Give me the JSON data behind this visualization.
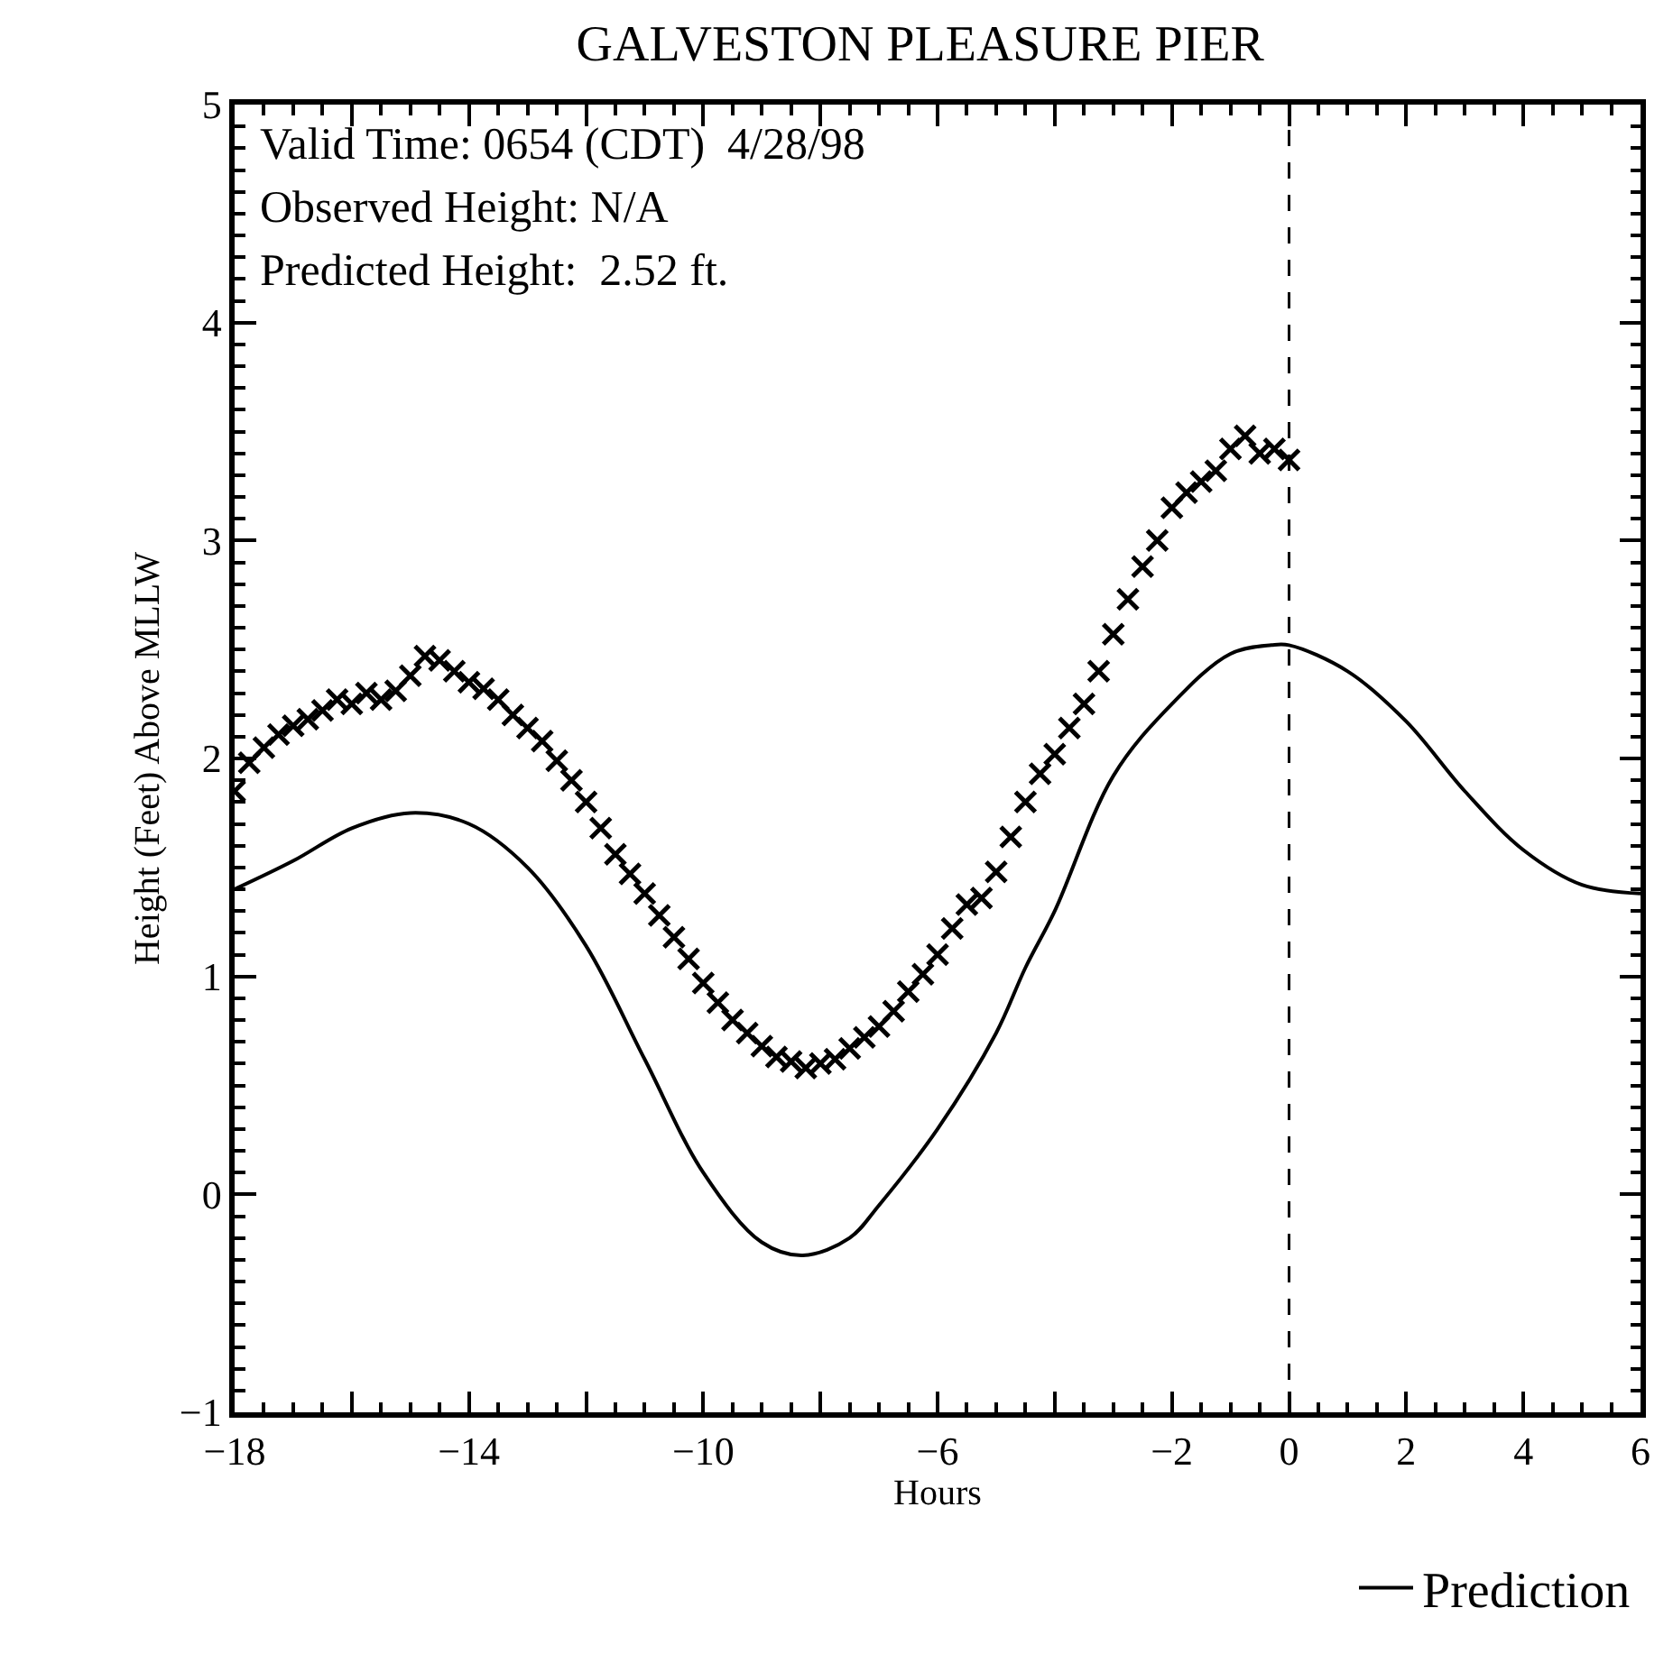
{
  "chart_data": {
    "type": "line",
    "title": "GALVESTON PLEASURE PIER",
    "xlabel": "Hours",
    "ylabel": "Height (Feet) Above MLLW",
    "annotations": [
      "Valid Time: 0654 (CDT)  4/28/98",
      "Observed Height: N/A",
      "Predicted Height:  2.52 ft."
    ],
    "xlim": [
      -18,
      6
    ],
    "ylim": [
      -1,
      5
    ],
    "xticks": [
      -18,
      {
        "value": -16,
        "label": null
      },
      -14,
      {
        "value": -12,
        "label": null
      },
      -10,
      {
        "value": -8,
        "label": null
      },
      -6,
      {
        "value": -4,
        "label": null
      },
      -2,
      0,
      2,
      4,
      6
    ],
    "yticks": [
      -1,
      0,
      1,
      2,
      3,
      4,
      5
    ],
    "grid": false,
    "legend": "bottom right",
    "ref_lines": [
      {
        "axis": "x",
        "value": 0,
        "line_style": "dashed",
        "color": "#000000"
      }
    ],
    "series": [
      {
        "name": "Prediction",
        "color": "#000000",
        "line_style": "solid",
        "marker": "none",
        "x": [
          -18,
          -17,
          -16,
          -15,
          -14,
          -13,
          -12,
          -11,
          -10,
          -9,
          -8.3,
          -7.5,
          -7,
          -6,
          -5,
          -4.5,
          -4,
          -3,
          -2,
          -1,
          -0.3,
          0,
          1,
          2,
          3,
          4,
          5,
          6
        ],
        "values": [
          1.4,
          1.53,
          1.68,
          1.75,
          1.7,
          1.5,
          1.14,
          0.62,
          0.1,
          -0.22,
          -0.28,
          -0.2,
          -0.05,
          0.3,
          0.74,
          1.04,
          1.3,
          1.92,
          2.25,
          2.48,
          2.52,
          2.52,
          2.4,
          2.17,
          1.85,
          1.58,
          1.42,
          1.38
        ]
      },
      {
        "type": "scatter",
        "color": "#000000",
        "marker": "cross",
        "x": [
          -18,
          -17.75,
          -17.5,
          -17.25,
          -17,
          -16.75,
          -16.5,
          -16.25,
          -16,
          -15.75,
          -15.5,
          -15.25,
          -15,
          -14.75,
          -14.5,
          -14.25,
          -14,
          -13.75,
          -13.5,
          -13.25,
          -13,
          -12.75,
          -12.5,
          -12.25,
          -12,
          -11.75,
          -11.5,
          -11.25,
          -11,
          -10.75,
          -10.5,
          -10.25,
          -10,
          -9.75,
          -9.5,
          -9.25,
          -9,
          -8.75,
          -8.5,
          -8.25,
          -8,
          -7.75,
          -7.5,
          -7.25,
          -7,
          -6.75,
          -6.5,
          -6.25,
          -6,
          -5.75,
          -5.5,
          -5.25,
          -5,
          -4.75,
          -4.5,
          -4.25,
          -4,
          -3.75,
          -3.5,
          -3.25,
          -3,
          -2.75,
          -2.5,
          -2.25,
          -2,
          -1.75,
          -1.5,
          -1.25,
          -1,
          -0.75,
          -0.5,
          -0.25,
          0
        ],
        "values": [
          1.85,
          1.98,
          2.05,
          2.11,
          2.15,
          2.18,
          2.22,
          2.27,
          2.25,
          2.3,
          2.27,
          2.31,
          2.38,
          2.47,
          2.45,
          2.4,
          2.35,
          2.32,
          2.27,
          2.2,
          2.14,
          2.08,
          1.99,
          1.9,
          1.8,
          1.68,
          1.56,
          1.47,
          1.38,
          1.28,
          1.18,
          1.08,
          0.97,
          0.88,
          0.8,
          0.74,
          0.68,
          0.63,
          0.61,
          0.58,
          0.6,
          0.62,
          0.67,
          0.72,
          0.77,
          0.84,
          0.93,
          1.01,
          1.1,
          1.22,
          1.33,
          1.36,
          1.48,
          1.64,
          1.8,
          1.93,
          2.02,
          2.14,
          2.25,
          2.4,
          2.57,
          2.73,
          2.88,
          3.0,
          3.15,
          3.22,
          3.27,
          3.32,
          3.42,
          3.48,
          3.4,
          3.42,
          3.37
        ]
      }
    ]
  }
}
